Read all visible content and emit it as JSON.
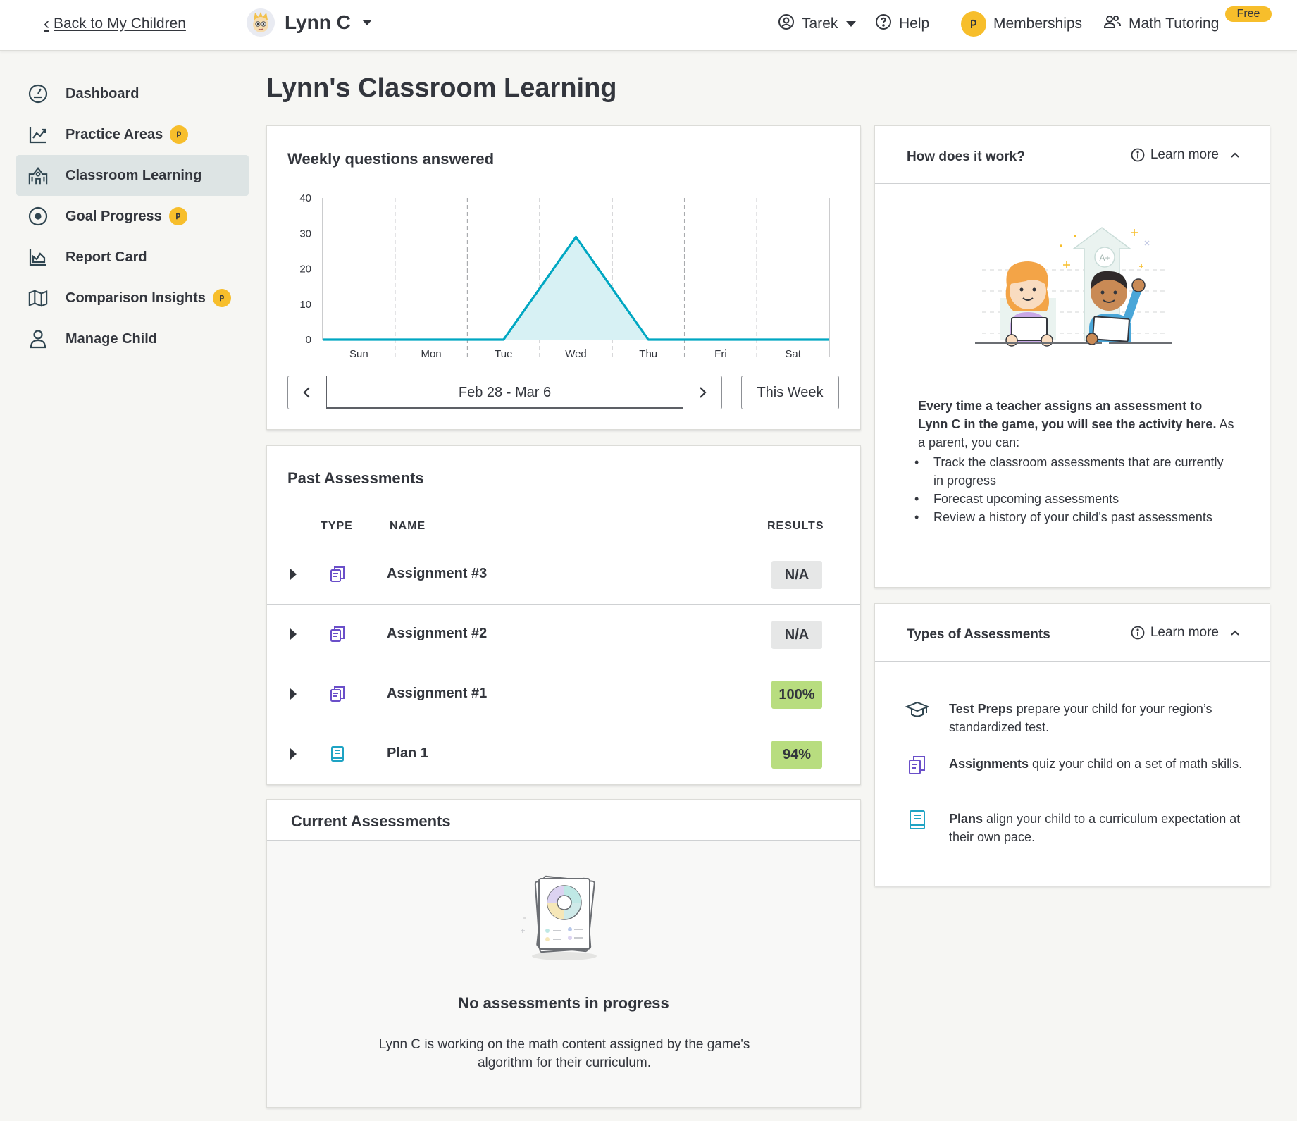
{
  "header": {
    "back_label": "Back to My Children",
    "child_name": "Lynn C",
    "user_name": "Tarek",
    "help_label": "Help",
    "memberships_label": "Memberships",
    "tutoring_label": "Math Tutoring",
    "tutoring_badge": "Free"
  },
  "sidebar": {
    "items": [
      {
        "label": "Dashboard",
        "icon": "gauge-icon"
      },
      {
        "label": "Practice Areas",
        "icon": "trend-chart-icon",
        "premium": true
      },
      {
        "label": "Classroom Learning",
        "icon": "school-icon",
        "active": true
      },
      {
        "label": "Goal Progress",
        "icon": "target-icon",
        "premium": true
      },
      {
        "label": "Report Card",
        "icon": "area-chart-icon"
      },
      {
        "label": "Comparison Insights",
        "icon": "map-icon",
        "premium": true
      },
      {
        "label": "Manage Child",
        "icon": "person-icon"
      }
    ]
  },
  "page": {
    "title": "Lynn's Classroom Learning"
  },
  "weekly": {
    "title": "Weekly questions answered",
    "date_range": "Feb 28 - Mar 6",
    "this_week_label": "This Week"
  },
  "chart_data": {
    "type": "area",
    "title": "Weekly questions answered",
    "categories": [
      "Sun",
      "Mon",
      "Tue",
      "Wed",
      "Thu",
      "Fri",
      "Sat"
    ],
    "series": [
      {
        "values": [
          0,
          0,
          0,
          29,
          0,
          0,
          0
        ]
      }
    ],
    "yticks": [
      0,
      10,
      20,
      30,
      40
    ],
    "ylim": [
      0,
      40
    ],
    "grid": "vertical dashed",
    "colors": {
      "line": "#00a7c2",
      "fill": "#d7f1f4"
    }
  },
  "past": {
    "title": "Past Assessments",
    "columns": {
      "type": "TYPE",
      "name": "NAME",
      "results": "RESULTS"
    },
    "rows": [
      {
        "name": "Assignment #3",
        "type": "assignment",
        "result": "N/A",
        "status": "na"
      },
      {
        "name": "Assignment #2",
        "type": "assignment",
        "result": "N/A",
        "status": "na"
      },
      {
        "name": "Assignment #1",
        "type": "assignment",
        "result": "100%",
        "status": "good"
      },
      {
        "name": "Plan 1",
        "type": "plan",
        "result": "94%",
        "status": "good"
      }
    ]
  },
  "current": {
    "title": "Current Assessments",
    "empty_title": "No assessments in progress",
    "empty_text": "Lynn C is working on the math content assigned by the game's algorithm for their curriculum."
  },
  "how": {
    "title": "How does it work?",
    "learn_more": "Learn more",
    "intro_bold": "Every time a teacher assigns an assessment to Lynn C in the game, you will see the activity here.",
    "intro_rest": " As a parent, you can:",
    "bullets": [
      "Track the classroom assessments that are currently in progress",
      "Forecast upcoming assessments",
      "Review a history of your child’s past assessments"
    ]
  },
  "types": {
    "title": "Types of Assessments",
    "learn_more": "Learn more",
    "items": [
      {
        "bold": "Test Preps",
        "text": " prepare your child for your region’s standardized test.",
        "icon": "graduation-cap-icon"
      },
      {
        "bold": "Assignments",
        "text": " quiz your child on a set of math skills.",
        "icon": "assignment-icon"
      },
      {
        "bold": "Plans",
        "text": " align your child to a curriculum expectation at their own pace.",
        "icon": "plan-icon"
      }
    ]
  },
  "colors": {
    "accent_yellow": "#f7be2b",
    "chart_teal": "#00a7c2",
    "result_good": "#b8dd7f",
    "result_na": "#e6e7e7",
    "assignment_purple": "#6a4fc9"
  }
}
